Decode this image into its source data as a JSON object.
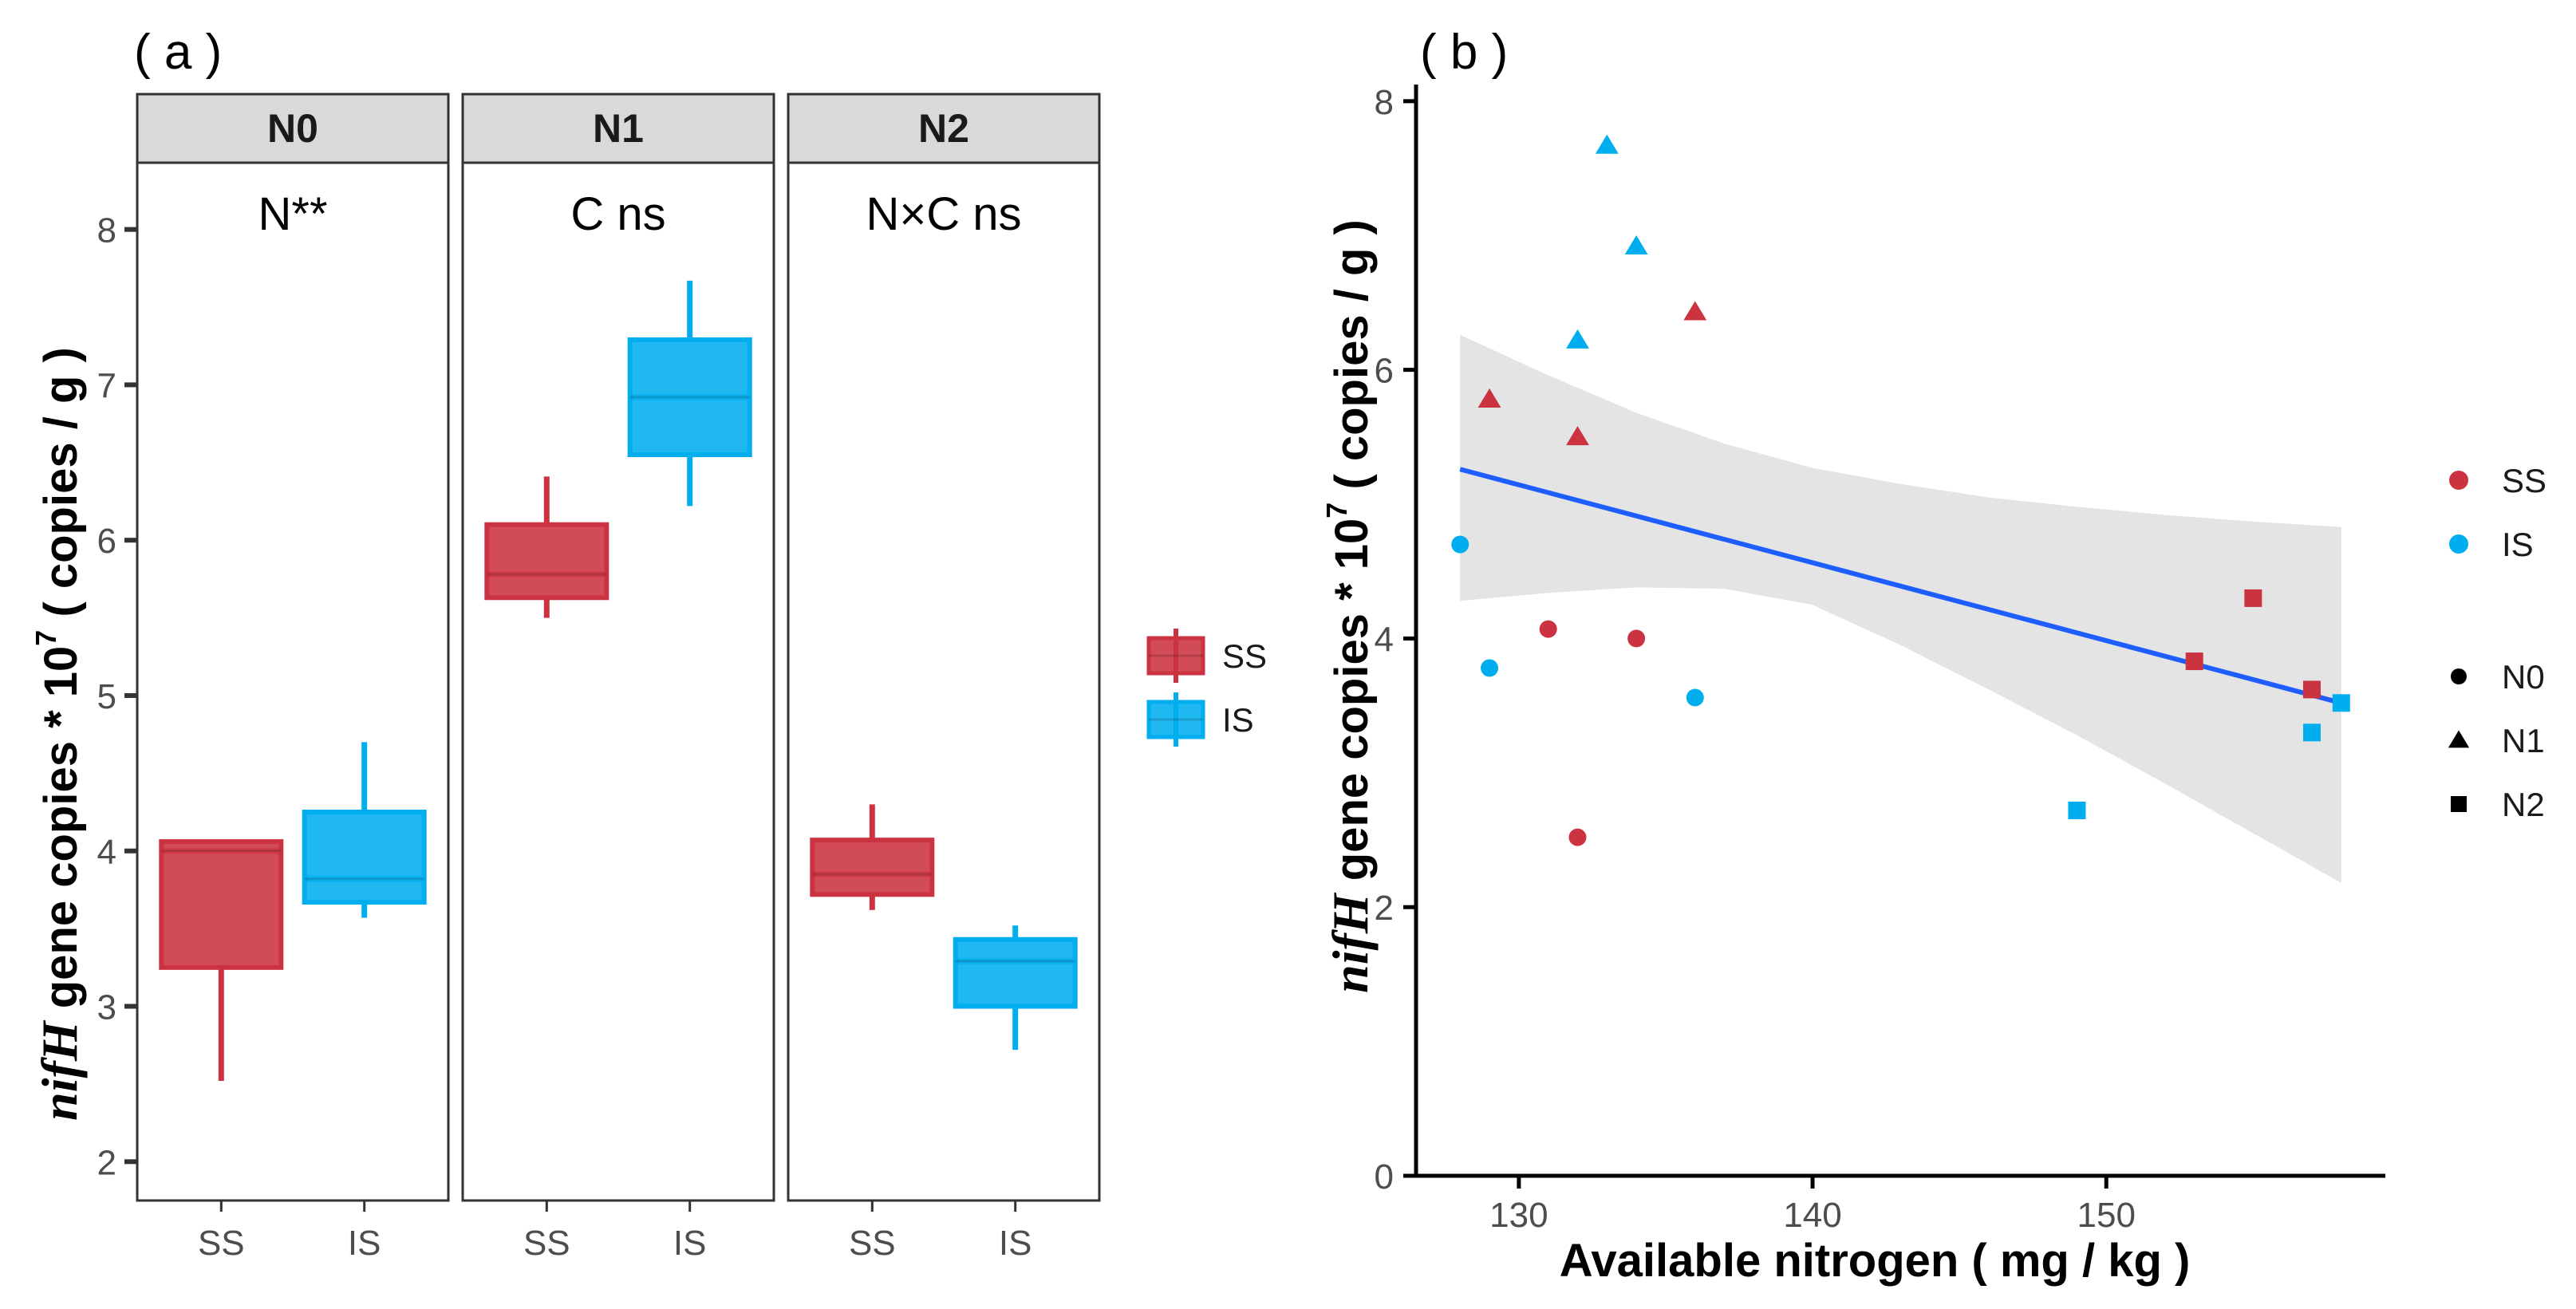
{
  "figure": {
    "panel_a_tag": "( a )",
    "panel_b_tag": "( b )",
    "colors": {
      "SS": "#CC3340",
      "IS": "#00AEEF",
      "fit": "#1E5EFF",
      "band": "#E3E3E3",
      "strip": "#D9D9D9"
    }
  },
  "chart_data": [
    {
      "type": "box",
      "panel": "a",
      "ylabel_italic": "nifH",
      "ylabel_rest": " gene copies * 10",
      "ylabel_sup": "7",
      "ylabel_unit": "  ( copies / g )",
      "ylim": [
        1.75,
        8.45
      ],
      "yticks": [
        2,
        3,
        4,
        5,
        6,
        7,
        8
      ],
      "categories": [
        "SS",
        "IS"
      ],
      "facets": [
        {
          "name": "N0",
          "annotation": "N**",
          "boxes": [
            {
              "group": "SS",
              "min": 2.52,
              "q1": 3.25,
              "median": 4.0,
              "q3": 4.06,
              "max": 4.06
            },
            {
              "group": "IS",
              "min": 3.57,
              "q1": 3.67,
              "median": 3.82,
              "q3": 4.25,
              "max": 4.7
            }
          ]
        },
        {
          "name": "N1",
          "annotation": "C ns",
          "boxes": [
            {
              "group": "SS",
              "min": 5.5,
              "q1": 5.63,
              "median": 5.78,
              "q3": 6.1,
              "max": 6.41
            },
            {
              "group": "IS",
              "min": 6.22,
              "q1": 6.55,
              "median": 6.92,
              "q3": 7.29,
              "max": 7.67
            }
          ]
        },
        {
          "name": "N2",
          "annotation": "N×C ns",
          "boxes": [
            {
              "group": "SS",
              "min": 3.62,
              "q1": 3.72,
              "median": 3.85,
              "q3": 4.07,
              "max": 4.3
            },
            {
              "group": "IS",
              "min": 2.72,
              "q1": 3.0,
              "median": 3.29,
              "q3": 3.43,
              "max": 3.52
            }
          ]
        }
      ],
      "legend": [
        {
          "label": "SS"
        },
        {
          "label": "IS"
        }
      ]
    },
    {
      "type": "scatter",
      "panel": "b",
      "xlabel": "Available nitrogen ( mg / kg )",
      "ylabel_italic": "nifH",
      "ylabel_rest": " gene copies * 10",
      "ylabel_sup": "7",
      "ylabel_unit": "  ( copies / g )",
      "xlim": [
        126.5,
        159.5
      ],
      "ylim": [
        0,
        8.1
      ],
      "xticks": [
        130,
        140,
        150
      ],
      "yticks": [
        0,
        2,
        4,
        6,
        8
      ],
      "points": [
        {
          "x": 131,
          "y": 4.07,
          "group": "SS",
          "level": "N0"
        },
        {
          "x": 132,
          "y": 2.52,
          "group": "SS",
          "level": "N0"
        },
        {
          "x": 134,
          "y": 4.0,
          "group": "SS",
          "level": "N0"
        },
        {
          "x": 128,
          "y": 4.7,
          "group": "IS",
          "level": "N0"
        },
        {
          "x": 129,
          "y": 3.78,
          "group": "IS",
          "level": "N0"
        },
        {
          "x": 136,
          "y": 3.56,
          "group": "IS",
          "level": "N0"
        },
        {
          "x": 129,
          "y": 5.78,
          "group": "SS",
          "level": "N1"
        },
        {
          "x": 132,
          "y": 5.5,
          "group": "SS",
          "level": "N1"
        },
        {
          "x": 136,
          "y": 6.43,
          "group": "SS",
          "level": "N1"
        },
        {
          "x": 132,
          "y": 6.22,
          "group": "IS",
          "level": "N1"
        },
        {
          "x": 133,
          "y": 7.67,
          "group": "IS",
          "level": "N1"
        },
        {
          "x": 134,
          "y": 6.92,
          "group": "IS",
          "level": "N1"
        },
        {
          "x": 153,
          "y": 3.83,
          "group": "SS",
          "level": "N2"
        },
        {
          "x": 155,
          "y": 4.3,
          "group": "SS",
          "level": "N2"
        },
        {
          "x": 157,
          "y": 3.62,
          "group": "SS",
          "level": "N2"
        },
        {
          "x": 149,
          "y": 2.72,
          "group": "IS",
          "level": "N2"
        },
        {
          "x": 157,
          "y": 3.3,
          "group": "IS",
          "level": "N2"
        },
        {
          "x": 158,
          "y": 3.52,
          "group": "IS",
          "level": "N2"
        }
      ],
      "fit": {
        "x": [
          128,
          158
        ],
        "y": [
          5.26,
          3.52
        ]
      },
      "confidence_band": {
        "x": [
          128,
          131,
          134,
          137,
          140,
          143,
          146,
          149,
          152,
          155,
          158
        ],
        "upper": [
          6.26,
          5.96,
          5.68,
          5.45,
          5.27,
          5.15,
          5.05,
          4.98,
          4.92,
          4.87,
          4.83
        ],
        "lower": [
          4.28,
          4.34,
          4.38,
          4.37,
          4.25,
          3.95,
          3.62,
          3.28,
          2.92,
          2.55,
          2.18
        ]
      },
      "legend_color": [
        {
          "label": "SS"
        },
        {
          "label": "IS"
        }
      ],
      "legend_shape": [
        {
          "label": "N0"
        },
        {
          "label": "N1"
        },
        {
          "label": "N2"
        }
      ]
    }
  ]
}
